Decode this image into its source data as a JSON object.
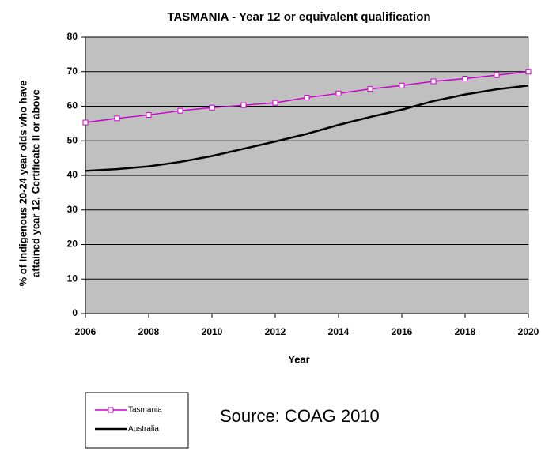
{
  "chart_data": {
    "type": "line",
    "title": "TASMANIA - Year 12 or equivalent qualification",
    "xlabel": "Year",
    "ylabel": [
      "% of Indigenous 20-24 year olds who have",
      "attained year 12, Certificate II or above"
    ],
    "x": [
      2006,
      2007,
      2008,
      2009,
      2010,
      2011,
      2012,
      2013,
      2014,
      2015,
      2016,
      2017,
      2018,
      2019,
      2020
    ],
    "series": [
      {
        "name": "Tasmania",
        "color": "#cc00cc",
        "marker": "square",
        "values": [
          55.3,
          56.5,
          57.5,
          58.7,
          59.6,
          60.3,
          61,
          62.5,
          63.7,
          65,
          66,
          67.2,
          68,
          69,
          70
        ]
      },
      {
        "name": "Australia",
        "color": "#000000",
        "values": [
          41.3,
          41.8,
          42.6,
          43.9,
          45.6,
          47.7,
          49.8,
          52,
          54.6,
          56.9,
          59,
          61.5,
          63.4,
          64.9,
          66
        ]
      }
    ],
    "xlim": [
      2006,
      2020
    ],
    "xticks": [
      2006,
      2008,
      2010,
      2012,
      2014,
      2016,
      2018,
      2020
    ],
    "ylim": [
      0,
      80
    ],
    "yticks": [
      0,
      10,
      20,
      30,
      40,
      50,
      60,
      70,
      80
    ],
    "grid": true,
    "annotation": "Source: COAG 2010"
  }
}
